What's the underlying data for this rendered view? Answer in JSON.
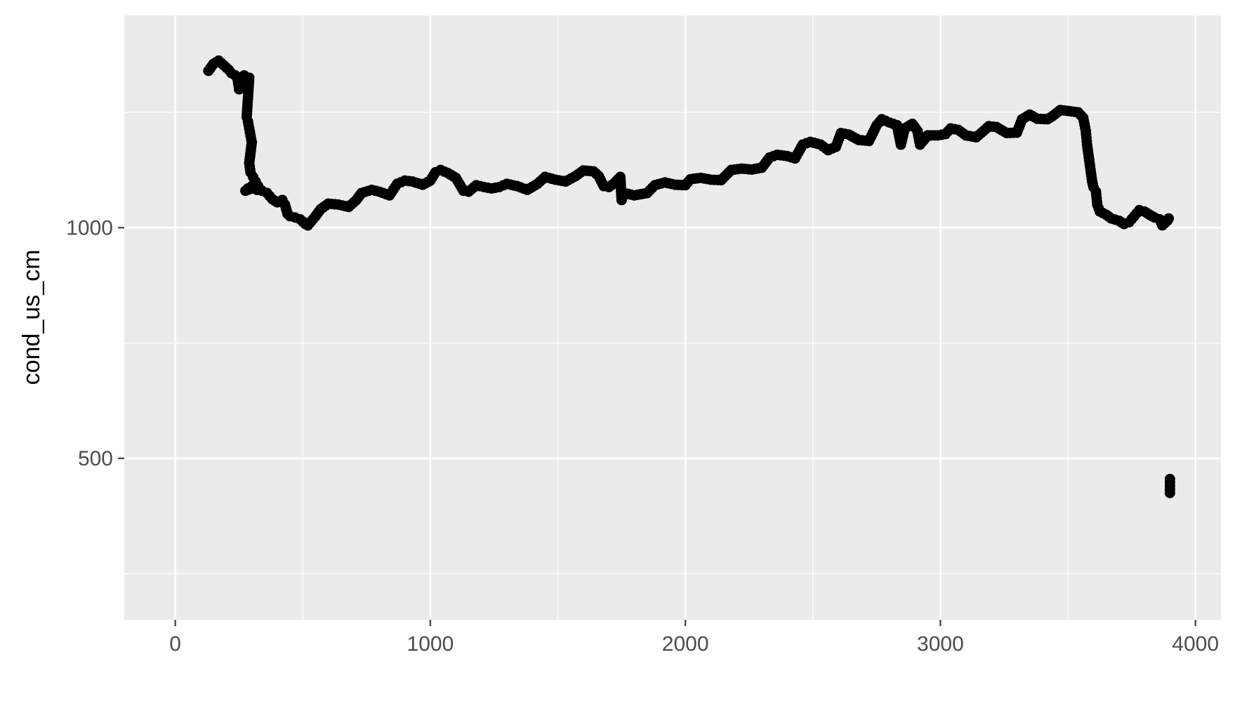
{
  "chart_data": {
    "type": "scatter",
    "title": "",
    "xlabel": "",
    "ylabel": "cond_us_cm",
    "xlim": [
      -200,
      4100
    ],
    "ylim": [
      150,
      1460
    ],
    "x_ticks": [
      0,
      1000,
      2000,
      3000,
      4000
    ],
    "x_tick_labels": [
      "0",
      "1000",
      "2000",
      "3000",
      "4000"
    ],
    "y_ticks": [
      500,
      1000
    ],
    "y_tick_labels": [
      "500",
      "1000"
    ],
    "grid": true,
    "legend": "none",
    "colors": {
      "panel": "#ebebeb",
      "grid": "#ffffff",
      "points": "#000000",
      "ticks": "#4d4d4d"
    },
    "series": [
      {
        "points": [
          [
            130,
            1340
          ],
          [
            150,
            1355
          ],
          [
            170,
            1362
          ],
          [
            190,
            1352
          ],
          [
            210,
            1342
          ],
          [
            220,
            1335
          ],
          [
            235,
            1330
          ],
          [
            245,
            1320
          ],
          [
            250,
            1300
          ],
          [
            260,
            1315
          ],
          [
            270,
            1330
          ],
          [
            280,
            1320
          ],
          [
            290,
            1325
          ],
          [
            280,
            1240
          ],
          [
            285,
            1230
          ],
          [
            290,
            1215
          ],
          [
            295,
            1200
          ],
          [
            300,
            1185
          ],
          [
            290,
            1140
          ],
          [
            295,
            1120
          ],
          [
            305,
            1110
          ],
          [
            315,
            1100
          ],
          [
            325,
            1090
          ],
          [
            275,
            1080
          ],
          [
            285,
            1085
          ],
          [
            300,
            1090
          ],
          [
            320,
            1082
          ],
          [
            340,
            1080
          ],
          [
            360,
            1075
          ],
          [
            380,
            1062
          ],
          [
            400,
            1055
          ],
          [
            420,
            1060
          ],
          [
            430,
            1050
          ],
          [
            440,
            1030
          ],
          [
            450,
            1025
          ],
          [
            470,
            1022
          ],
          [
            490,
            1018
          ],
          [
            510,
            1008
          ],
          [
            520,
            1005
          ],
          [
            535,
            1015
          ],
          [
            550,
            1025
          ],
          [
            570,
            1040
          ],
          [
            600,
            1052
          ],
          [
            640,
            1050
          ],
          [
            680,
            1045
          ],
          [
            710,
            1060
          ],
          [
            730,
            1075
          ],
          [
            770,
            1082
          ],
          [
            800,
            1078
          ],
          [
            840,
            1070
          ],
          [
            870,
            1095
          ],
          [
            900,
            1102
          ],
          [
            930,
            1100
          ],
          [
            970,
            1093
          ],
          [
            1000,
            1102
          ],
          [
            1020,
            1120
          ],
          [
            1040,
            1125
          ],
          [
            1070,
            1118
          ],
          [
            1100,
            1108
          ],
          [
            1130,
            1080
          ],
          [
            1150,
            1078
          ],
          [
            1180,
            1092
          ],
          [
            1210,
            1088
          ],
          [
            1240,
            1085
          ],
          [
            1270,
            1088
          ],
          [
            1300,
            1095
          ],
          [
            1340,
            1090
          ],
          [
            1380,
            1082
          ],
          [
            1420,
            1095
          ],
          [
            1450,
            1110
          ],
          [
            1490,
            1104
          ],
          [
            1530,
            1100
          ],
          [
            1570,
            1112
          ],
          [
            1600,
            1124
          ],
          [
            1640,
            1122
          ],
          [
            1660,
            1112
          ],
          [
            1680,
            1090
          ],
          [
            1700,
            1088
          ],
          [
            1720,
            1096
          ],
          [
            1745,
            1110
          ],
          [
            1750,
            1060
          ],
          [
            1760,
            1075
          ],
          [
            1800,
            1070
          ],
          [
            1850,
            1075
          ],
          [
            1880,
            1092
          ],
          [
            1920,
            1098
          ],
          [
            1960,
            1093
          ],
          [
            2000,
            1092
          ],
          [
            2020,
            1105
          ],
          [
            2060,
            1108
          ],
          [
            2100,
            1104
          ],
          [
            2140,
            1103
          ],
          [
            2180,
            1125
          ],
          [
            2220,
            1128
          ],
          [
            2260,
            1126
          ],
          [
            2300,
            1130
          ],
          [
            2330,
            1152
          ],
          [
            2360,
            1158
          ],
          [
            2400,
            1155
          ],
          [
            2430,
            1150
          ],
          [
            2460,
            1180
          ],
          [
            2490,
            1186
          ],
          [
            2530,
            1180
          ],
          [
            2560,
            1168
          ],
          [
            2590,
            1175
          ],
          [
            2610,
            1205
          ],
          [
            2640,
            1202
          ],
          [
            2680,
            1190
          ],
          [
            2720,
            1188
          ],
          [
            2750,
            1222
          ],
          [
            2770,
            1235
          ],
          [
            2800,
            1228
          ],
          [
            2830,
            1222
          ],
          [
            2845,
            1180
          ],
          [
            2860,
            1215
          ],
          [
            2890,
            1225
          ],
          [
            2910,
            1210
          ],
          [
            2920,
            1180
          ],
          [
            2950,
            1200
          ],
          [
            2990,
            1200
          ],
          [
            3020,
            1203
          ],
          [
            3040,
            1215
          ],
          [
            3070,
            1212
          ],
          [
            3100,
            1200
          ],
          [
            3140,
            1196
          ],
          [
            3170,
            1210
          ],
          [
            3190,
            1220
          ],
          [
            3220,
            1218
          ],
          [
            3260,
            1205
          ],
          [
            3300,
            1206
          ],
          [
            3320,
            1235
          ],
          [
            3350,
            1245
          ],
          [
            3380,
            1236
          ],
          [
            3420,
            1235
          ],
          [
            3440,
            1242
          ],
          [
            3470,
            1255
          ],
          [
            3500,
            1253
          ],
          [
            3540,
            1250
          ],
          [
            3560,
            1238
          ],
          [
            3570,
            1210
          ],
          [
            3575,
            1180
          ],
          [
            3580,
            1160
          ],
          [
            3585,
            1140
          ],
          [
            3590,
            1120
          ],
          [
            3595,
            1100
          ],
          [
            3600,
            1088
          ],
          [
            3610,
            1078
          ],
          [
            3615,
            1050
          ],
          [
            3625,
            1035
          ],
          [
            3650,
            1028
          ],
          [
            3670,
            1020
          ],
          [
            3700,
            1015
          ],
          [
            3720,
            1008
          ],
          [
            3740,
            1012
          ],
          [
            3760,
            1025
          ],
          [
            3780,
            1038
          ],
          [
            3800,
            1035
          ],
          [
            3820,
            1028
          ],
          [
            3840,
            1022
          ],
          [
            3860,
            1018
          ],
          [
            3870,
            1005
          ],
          [
            3880,
            1010
          ],
          [
            3890,
            1015
          ],
          [
            3895,
            1020
          ],
          [
            3900,
            455
          ],
          [
            3900,
            440
          ],
          [
            3900,
            425
          ]
        ]
      }
    ]
  }
}
